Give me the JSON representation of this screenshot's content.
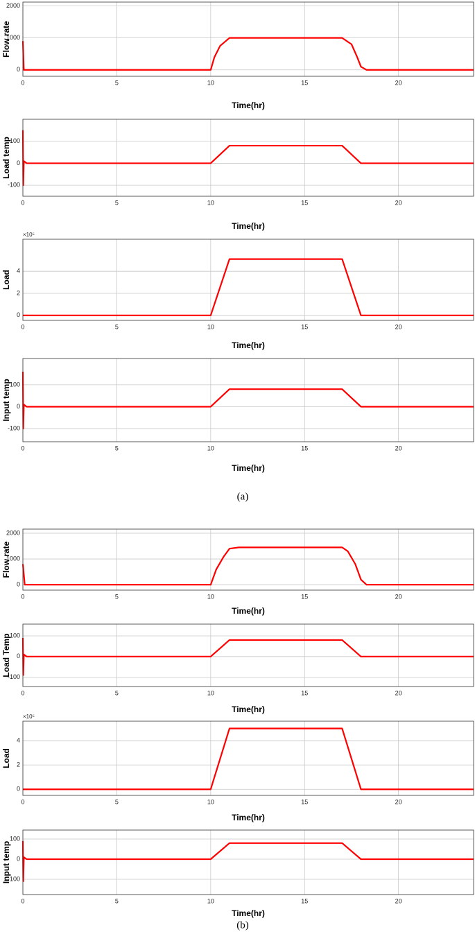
{
  "chart_data": [
    {
      "type": "line",
      "ylabel": "Flow rate",
      "xlabel": "Time(hr)",
      "xlim": [
        0,
        24
      ],
      "xticks": [
        0,
        5,
        10,
        15,
        20
      ],
      "ylim": [
        -200,
        2120
      ],
      "yticks": [
        0,
        1000,
        2000
      ],
      "grid": true,
      "color": "#ff0000",
      "x": [
        0,
        0.05,
        0.2,
        10,
        10.2,
        10.5,
        11,
        17,
        17.5,
        17.8,
        18,
        18.3,
        24
      ],
      "values": [
        900,
        0,
        0,
        0,
        400,
        750,
        1000,
        1000,
        800,
        400,
        100,
        0,
        0
      ]
    },
    {
      "type": "line",
      "ylabel": "Load temp",
      "xlabel": "Time(hr)",
      "xlim": [
        0,
        24
      ],
      "xticks": [
        0,
        5,
        10,
        15,
        20
      ],
      "ylim": [
        -150,
        200
      ],
      "yticks": [
        -100,
        0,
        100
      ],
      "grid": true,
      "color": "#ff0000",
      "x": [
        0,
        0.02,
        0.05,
        0.2,
        10,
        11,
        17,
        18,
        24
      ],
      "values": [
        150,
        -100,
        10,
        0,
        0,
        80,
        80,
        0,
        0
      ]
    },
    {
      "type": "line",
      "ylabel": "Load",
      "xlabel": "Time(hr)",
      "multiplier": "×10⁵",
      "xlim": [
        0,
        24
      ],
      "xticks": [
        0,
        5,
        10,
        15,
        20
      ],
      "ylim": [
        -0.45,
        6.9
      ],
      "yticks": [
        0,
        2,
        4
      ],
      "grid": true,
      "color": "#ff0000",
      "x": [
        0,
        10,
        11,
        17,
        18,
        24
      ],
      "values": [
        0,
        0,
        5.1,
        5.1,
        0,
        0
      ]
    },
    {
      "type": "line",
      "ylabel": "Input temp",
      "xlabel": "Time(hr)",
      "xlim": [
        0,
        24
      ],
      "xticks": [
        0,
        5,
        10,
        15,
        20
      ],
      "ylim": [
        -160,
        220
      ],
      "yticks": [
        -100,
        0,
        100
      ],
      "grid": true,
      "color": "#ff0000",
      "x": [
        0,
        0.02,
        0.05,
        0.2,
        10,
        11,
        17,
        18,
        24
      ],
      "values": [
        160,
        -100,
        10,
        0,
        0,
        80,
        80,
        0,
        0
      ]
    },
    {
      "type": "line",
      "ylabel": "Flow rate",
      "xlabel": "Time(hr)",
      "xlim": [
        0,
        24
      ],
      "xticks": [
        0,
        5,
        10,
        15,
        20
      ],
      "ylim": [
        -210,
        2160
      ],
      "yticks": [
        0,
        1000,
        2000
      ],
      "grid": true,
      "color": "#ff0000",
      "x": [
        0,
        0.1,
        10,
        10.3,
        10.7,
        11,
        11.5,
        17,
        17.3,
        17.7,
        18,
        18.3,
        24
      ],
      "values": [
        800,
        0,
        0,
        600,
        1100,
        1400,
        1450,
        1450,
        1300,
        800,
        200,
        0,
        0
      ]
    },
    {
      "type": "line",
      "ylabel": "Load Temp",
      "xlabel": "Time(hr)",
      "xlim": [
        0,
        24
      ],
      "xticks": [
        0,
        5,
        10,
        15,
        20
      ],
      "ylim": [
        -145,
        157
      ],
      "yticks": [
        -100,
        0,
        100
      ],
      "grid": true,
      "color": "#ff0000",
      "x": [
        0,
        0.02,
        0.05,
        0.2,
        10,
        11,
        17,
        18,
        24
      ],
      "values": [
        90,
        -90,
        10,
        0,
        0,
        80,
        80,
        0,
        0
      ]
    },
    {
      "type": "line",
      "ylabel": "Load",
      "xlabel": "Time(hr)",
      "multiplier": "×10⁵",
      "xlim": [
        0,
        24
      ],
      "xticks": [
        0,
        5,
        10,
        15,
        20
      ],
      "ylim": [
        -0.5,
        5.6
      ],
      "yticks": [
        0,
        2,
        4
      ],
      "grid": true,
      "color": "#ff0000",
      "x": [
        0,
        10,
        11,
        17,
        18,
        24
      ],
      "values": [
        0,
        0,
        5,
        5,
        0,
        0
      ]
    },
    {
      "type": "line",
      "ylabel": "Input temp",
      "xlabel": "Time(hr)",
      "xlim": [
        0,
        24
      ],
      "xticks": [
        0,
        5,
        10,
        15,
        20
      ],
      "ylim": [
        -176,
        145
      ],
      "yticks": [
        -100,
        0,
        100
      ],
      "grid": true,
      "color": "#ff0000",
      "x": [
        0,
        0.02,
        0.05,
        0.2,
        10,
        11,
        17,
        18,
        24
      ],
      "values": [
        90,
        -110,
        10,
        0,
        0,
        80,
        80,
        0,
        0
      ]
    }
  ],
  "captions": [
    "(a)",
    "(b)"
  ]
}
